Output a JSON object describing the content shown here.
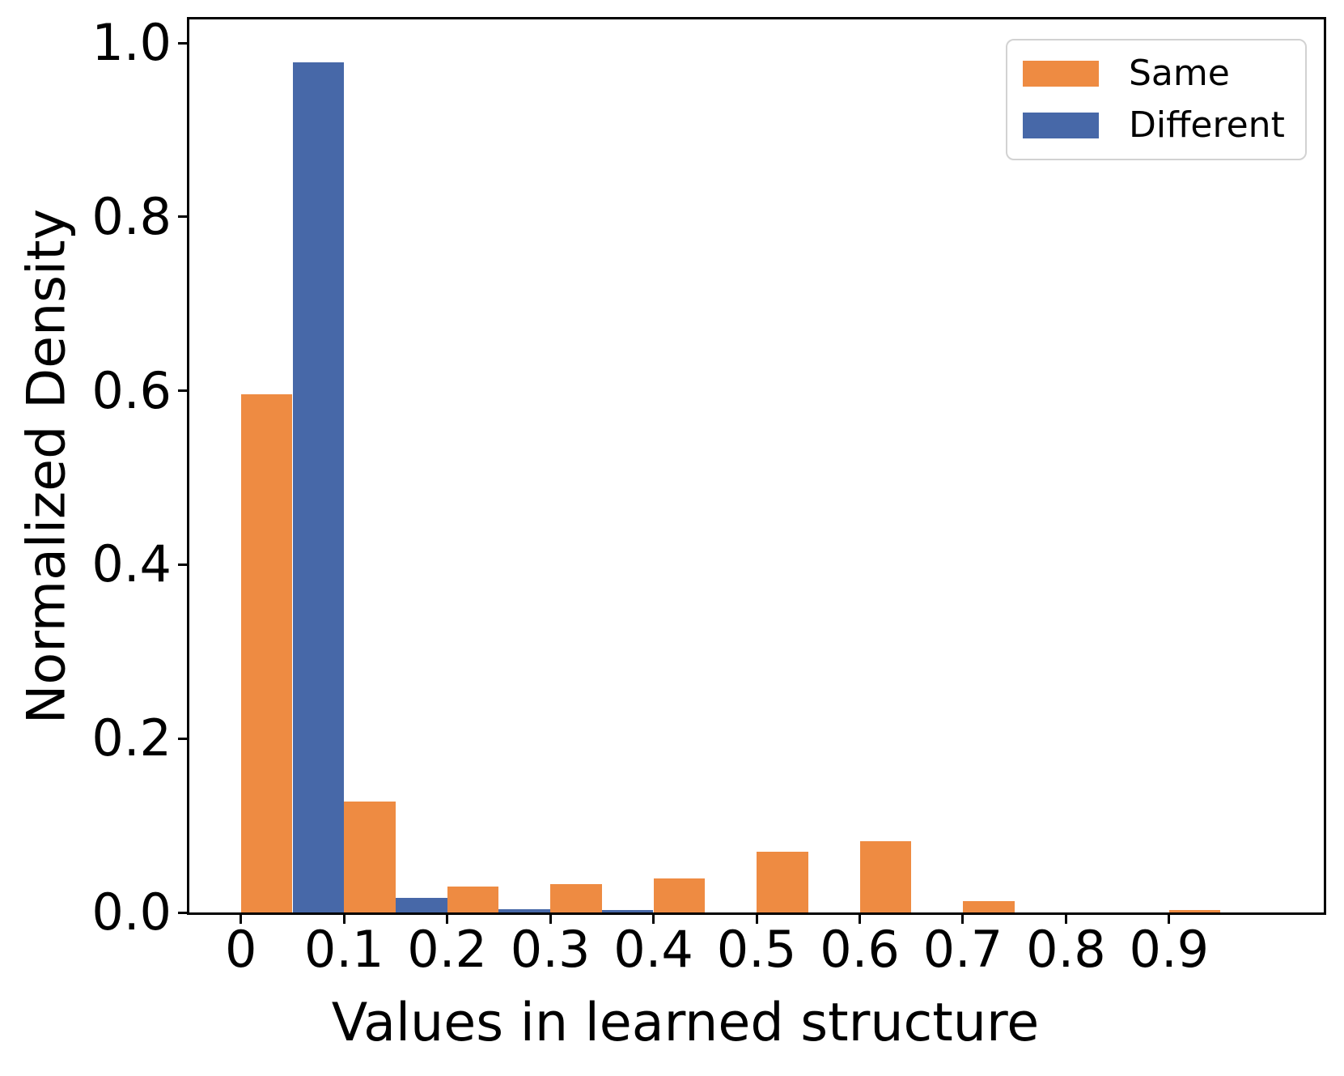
{
  "chart_data": {
    "type": "bar",
    "subtype": "histogram",
    "title": "",
    "xlabel": "Values in learned structure",
    "ylabel": "Normalized Density",
    "bin_edges": [
      0,
      0.1,
      0.2,
      0.3,
      0.4,
      0.5,
      0.6,
      0.7,
      0.8,
      0.9,
      1.0
    ],
    "series": [
      {
        "name": "Same",
        "color": "#EE8B42",
        "values": [
          0.596,
          0.128,
          0.03,
          0.033,
          0.039,
          0.07,
          0.082,
          0.013,
          0.0,
          0.003
        ]
      },
      {
        "name": "Different",
        "color": "#4768A8",
        "values": [
          0.978,
          0.017,
          0.004,
          0.003,
          0.0,
          0.0,
          0.0,
          0.0,
          0.0,
          0.0
        ]
      }
    ],
    "bar_arrangement": "side-by-side within each bin, Same first then Different",
    "x_ticks": {
      "values": [
        0,
        0.1,
        0.2,
        0.3,
        0.4,
        0.5,
        0.6,
        0.7,
        0.8,
        0.9
      ],
      "labels": [
        "0",
        "0.1",
        "0.2",
        "0.3",
        "0.4",
        "0.5",
        "0.6",
        "0.7",
        "0.8",
        "0.9"
      ]
    },
    "y_ticks": {
      "values": [
        0,
        0.2,
        0.4,
        0.6,
        0.8,
        1.0
      ],
      "labels": [
        "0.0",
        "0.2",
        "0.4",
        "0.6",
        "0.8",
        "1.0"
      ]
    },
    "xlim": [
      -0.05,
      1.05
    ],
    "ylim": [
      0,
      1.027
    ],
    "grid": false,
    "legend": {
      "position": "upper right",
      "entries": [
        "Same",
        "Different"
      ]
    },
    "colors": {
      "axis": "#000000",
      "background": "#ffffff",
      "legend_border": "#d2d2d2"
    }
  }
}
